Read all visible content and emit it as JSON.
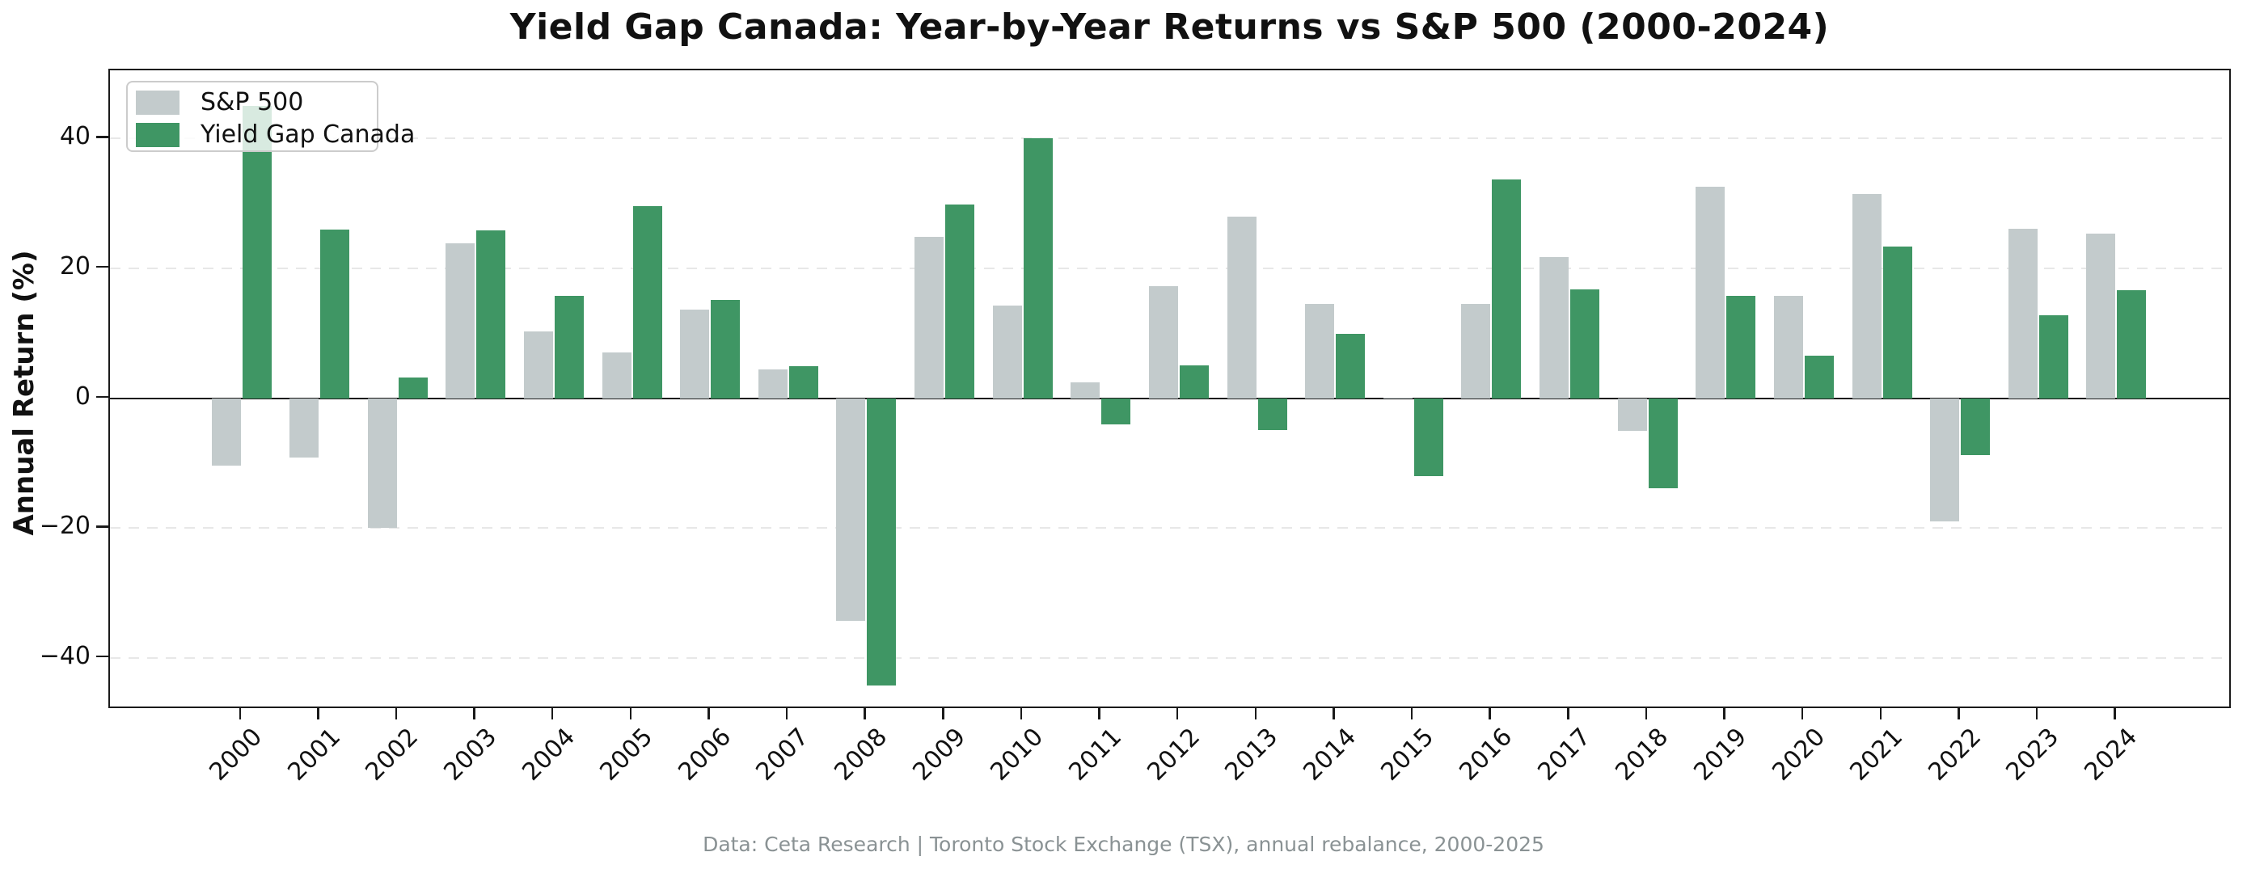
{
  "title": "Yield Gap Canada: Year-by-Year Returns vs S&P 500 (2000-2024)",
  "footer": "Data: Ceta Research | Toronto Stock Exchange (TSX), annual rebalance, 2000-2025",
  "y_axis": {
    "label": "Annual Return (%)",
    "tick_labels": [
      "−40",
      "−20",
      "0",
      "20",
      "40"
    ]
  },
  "legend": {
    "items": [
      {
        "label": "S&P 500",
        "color": "#c3cbcc"
      },
      {
        "label": "Yield Gap Canada",
        "color": "#3f9664"
      }
    ]
  },
  "colors": {
    "sp500_bar": "#c3cbcc",
    "yield_gap_bar": "#3f9664",
    "gridline": "#e8e8e8",
    "axis": "#1a1a1a",
    "footer_text": "#8a9294",
    "legend_border": "#cccccc"
  },
  "chart_data": {
    "type": "bar",
    "title": "Yield Gap Canada: Year-by-Year Returns vs S&P 500 (2000-2024)",
    "xlabel": "",
    "ylabel": "Annual Return (%)",
    "categories": [
      "2000",
      "2001",
      "2002",
      "2003",
      "2004",
      "2005",
      "2006",
      "2007",
      "2008",
      "2009",
      "2010",
      "2011",
      "2012",
      "2013",
      "2014",
      "2015",
      "2016",
      "2017",
      "2018",
      "2019",
      "2020",
      "2021",
      "2022",
      "2023",
      "2024"
    ],
    "series": [
      {
        "name": "S&P 500",
        "color": "#c3cbcc",
        "values": [
          -10.4,
          -9.2,
          -20.0,
          23.9,
          10.3,
          7.1,
          13.6,
          4.4,
          -34.3,
          24.8,
          14.3,
          2.4,
          17.2,
          27.9,
          14.5,
          0.1,
          14.5,
          21.7,
          -5.0,
          32.6,
          15.8,
          31.4,
          -19.0,
          26.1,
          25.4
        ]
      },
      {
        "name": "Yield Gap Canada",
        "color": "#3f9664",
        "values": [
          45.0,
          26.0,
          3.2,
          25.8,
          15.8,
          29.6,
          15.1,
          4.9,
          -44.3,
          29.8,
          40.0,
          -4.1,
          5.1,
          -4.9,
          9.9,
          -12.0,
          33.7,
          16.8,
          -13.9,
          15.8,
          6.6,
          23.4,
          -8.8,
          12.8,
          16.6
        ]
      }
    ],
    "ylim": [
      -48.0,
      50.5
    ],
    "yticks": [
      -40,
      -20,
      0,
      20,
      40
    ],
    "grid": "horizontal-dashed",
    "zero_line": true,
    "legend_position": "upper-left",
    "bar_width_ratio": 0.38
  }
}
